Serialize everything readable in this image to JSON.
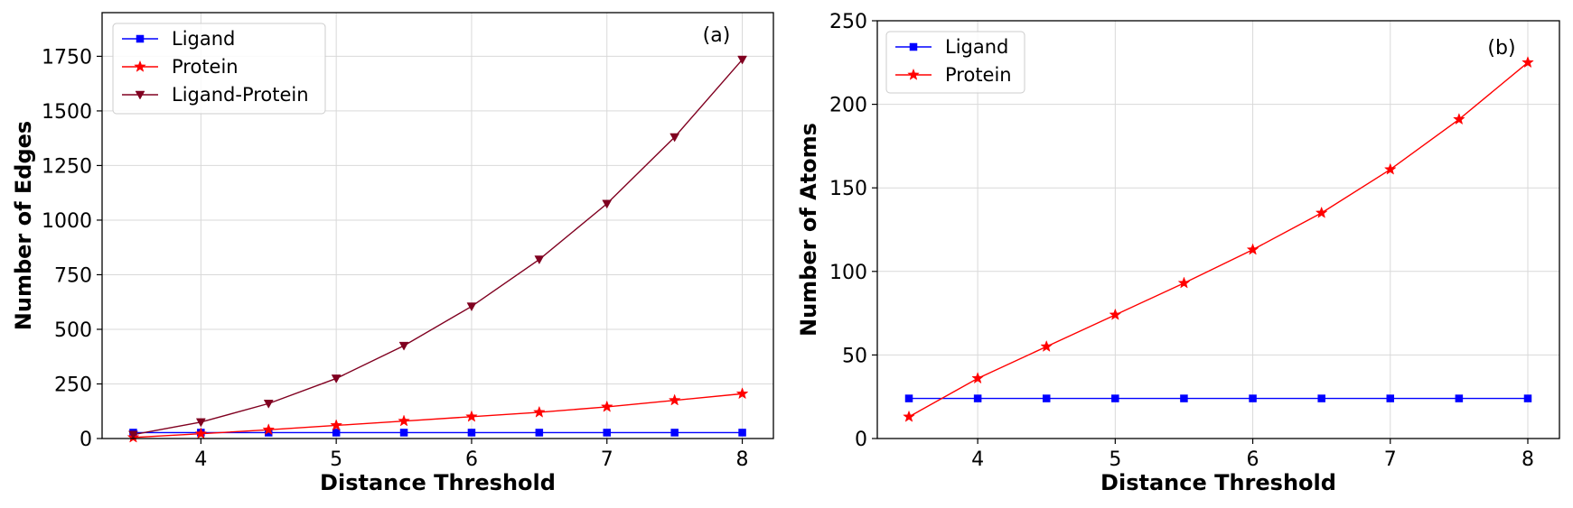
{
  "chart_data": [
    {
      "type": "line",
      "panel_label": "(a)",
      "xlabel": "Distance Threshold",
      "ylabel": "Number of Edges",
      "x": [
        3.5,
        4,
        4.5,
        5,
        5.5,
        6,
        6.5,
        7,
        7.5,
        8
      ],
      "xlim": [
        3.27,
        8.23
      ],
      "ylim": [
        0,
        1950
      ],
      "xticks": [
        4,
        5,
        6,
        7,
        8
      ],
      "yticks": [
        0,
        250,
        500,
        750,
        1000,
        1250,
        1500,
        1750
      ],
      "grid": true,
      "legend_position": "top-left",
      "series": [
        {
          "name": "Ligand",
          "color": "#0000ff",
          "marker": "square",
          "values": [
            27,
            27,
            27,
            27,
            27,
            27,
            27,
            27,
            27,
            27
          ]
        },
        {
          "name": "Protein",
          "color": "#ff0000",
          "marker": "star",
          "values": [
            5,
            22,
            40,
            60,
            80,
            100,
            120,
            145,
            175,
            205
          ]
        },
        {
          "name": "Ligand-Protein",
          "color": "#800020",
          "marker": "triangle-down",
          "values": [
            18,
            75,
            160,
            275,
            425,
            605,
            820,
            1075,
            1380,
            1735
          ]
        }
      ]
    },
    {
      "type": "line",
      "panel_label": "(b)",
      "xlabel": "Distance Threshold",
      "ylabel": "Number of Atoms",
      "x": [
        3.5,
        4,
        4.5,
        5,
        5.5,
        6,
        6.5,
        7,
        7.5,
        8
      ],
      "xlim": [
        3.27,
        8.23
      ],
      "ylim": [
        0,
        250
      ],
      "xticks": [
        4,
        5,
        6,
        7,
        8
      ],
      "yticks": [
        0,
        50,
        100,
        150,
        200,
        250
      ],
      "grid": true,
      "legend_position": "top-left",
      "series": [
        {
          "name": "Ligand",
          "color": "#0000ff",
          "marker": "square",
          "values": [
            24,
            24,
            24,
            24,
            24,
            24,
            24,
            24,
            24,
            24
          ]
        },
        {
          "name": "Protein",
          "color": "#ff0000",
          "marker": "star",
          "values": [
            13,
            36,
            55,
            74,
            93,
            113,
            135,
            161,
            191,
            225
          ]
        }
      ]
    }
  ]
}
